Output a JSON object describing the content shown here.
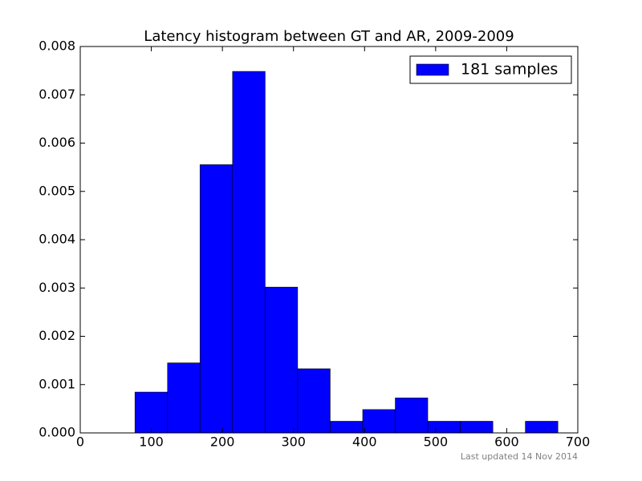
{
  "chart_data": {
    "type": "histogram",
    "title": "Latency histogram between GT and AR, 2009-2009",
    "bins": [
      77,
      122.8,
      168.5,
      214.3,
      260.1,
      305.8,
      351.6,
      397.4,
      443.2,
      488.9,
      534.7,
      580.5,
      626.2,
      672
    ],
    "series": [
      {
        "name": "181 samples",
        "color": "#0000ff",
        "values": [
          0.000845,
          0.001449,
          0.005553,
          0.007484,
          0.003018,
          0.001328,
          0.000241,
          0.000483,
          0.000724,
          0.000241,
          0.000241,
          0,
          0.000241
        ]
      }
    ],
    "xlim": [
      0,
      700
    ],
    "xticks": [
      0,
      100,
      200,
      300,
      400,
      500,
      600,
      700
    ],
    "ylim": [
      0,
      0.008
    ],
    "yticks": [
      {
        "value": 0,
        "label": "0.000"
      },
      {
        "value": 0.001,
        "label": "0.001"
      },
      {
        "value": 0.002,
        "label": "0.002"
      },
      {
        "value": 0.003,
        "label": "0.003"
      },
      {
        "value": 0.004,
        "label": "0.004"
      },
      {
        "value": 0.005,
        "label": "0.005"
      },
      {
        "value": 0.006,
        "label": "0.006"
      },
      {
        "value": 0.007,
        "label": "0.007"
      },
      {
        "value": 0.008,
        "label": "0.008"
      }
    ],
    "legend": "upper right",
    "footnote": "Last updated 14 Nov 2014"
  }
}
